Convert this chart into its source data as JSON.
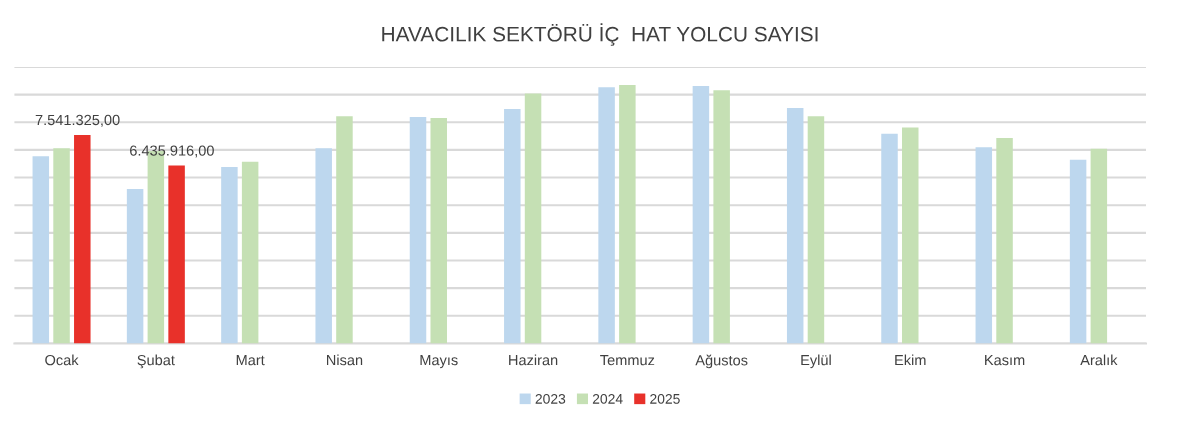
{
  "chart_data": {
    "type": "bar",
    "title": "HAVACILIK SEKTÖRÜ İÇ  HAT YOLCU SAYISI",
    "categories": [
      "Ocak",
      "Şubat",
      "Mart",
      "Nisan",
      "Mayıs",
      "Haziran",
      "Temmuz",
      "Ağustos",
      "Eylül",
      "Ekim",
      "Kasım",
      "Aralık"
    ],
    "series": [
      {
        "name": "2023",
        "color": "#bdd7ee",
        "values": [
          6770000,
          5590000,
          6380000,
          7060000,
          8190000,
          8480000,
          9270000,
          9310000,
          8520000,
          7580000,
          7100000,
          6640000
        ]
      },
      {
        "name": "2024",
        "color": "#c5e0b4",
        "values": [
          7060000,
          6960000,
          6570000,
          8220000,
          8150000,
          9040000,
          9350000,
          9160000,
          8220000,
          7810000,
          7430000,
          7040000
        ]
      },
      {
        "name": "2025",
        "color": "#e8312a",
        "values": [
          7541325,
          6435916,
          null,
          null,
          null,
          null,
          null,
          null,
          null,
          null,
          null,
          null
        ],
        "value_labels": [
          "7.541.325,00",
          "6.435.916,00",
          null,
          null,
          null,
          null,
          null,
          null,
          null,
          null,
          null,
          null
        ]
      }
    ],
    "ylim": [
      0,
      10000000
    ],
    "yticks": [
      {
        "value": 0,
        "label": null
      },
      {
        "value": 1000000,
        "label": null
      },
      {
        "value": 2000000,
        "label": null
      },
      {
        "value": 3000000,
        "label": null
      },
      {
        "value": 4000000,
        "label": null
      },
      {
        "value": 5000000,
        "label": null
      },
      {
        "value": 6000000,
        "label": null
      },
      {
        "value": 7000000,
        "label": null
      },
      {
        "value": 8000000,
        "label": null
      },
      {
        "value": 9000000,
        "label": null
      },
      {
        "value": 10000000,
        "label": null
      }
    ],
    "tick_labels": "x",
    "grid": "y",
    "legend": "bottom"
  }
}
